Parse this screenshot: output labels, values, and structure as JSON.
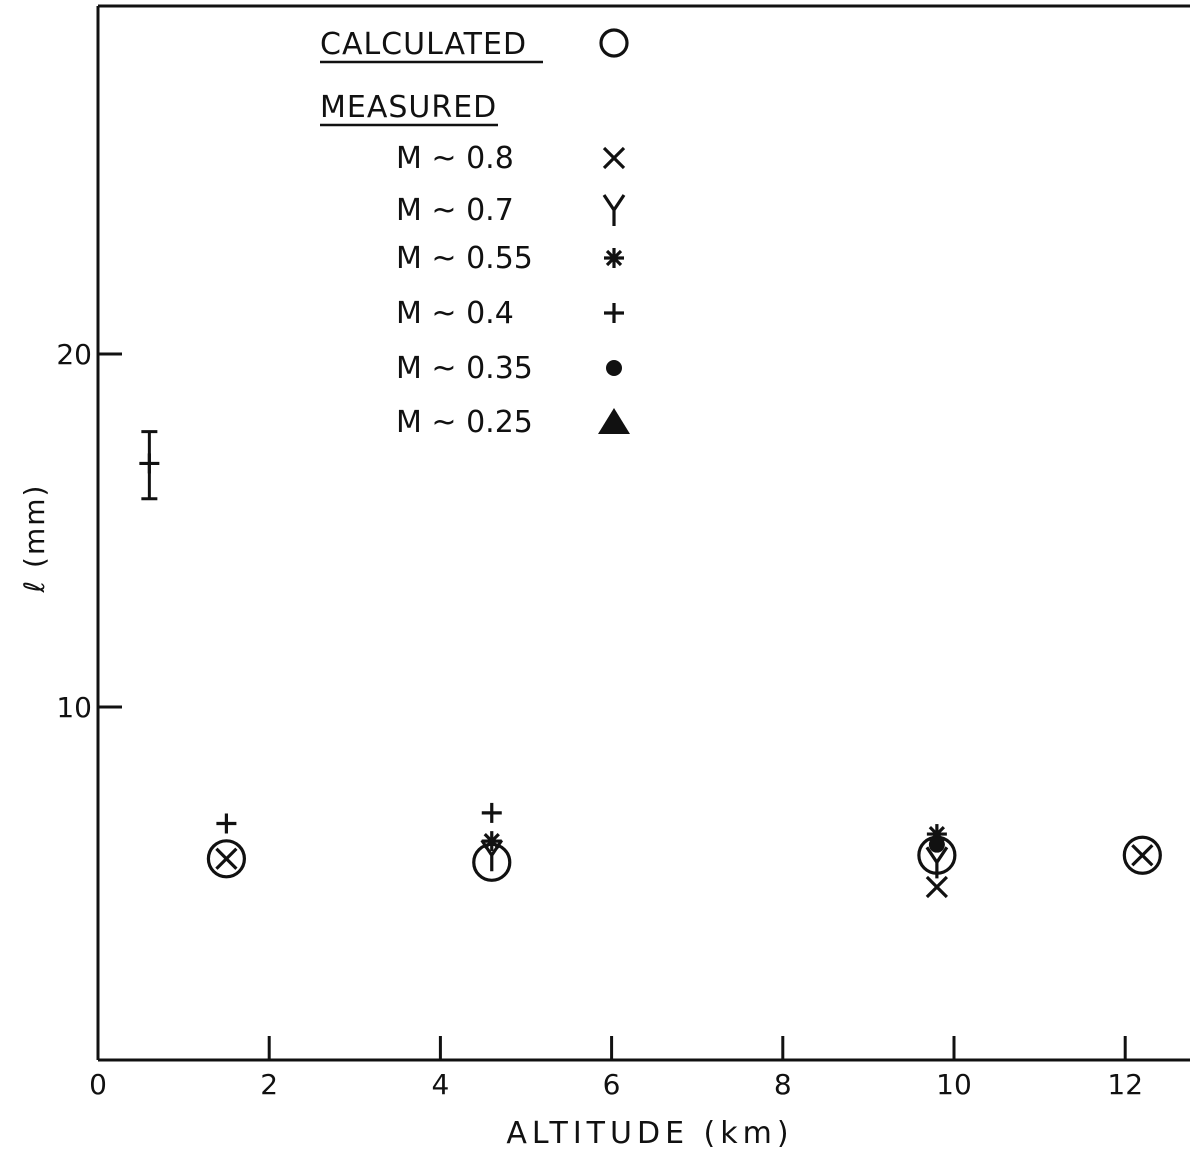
{
  "chart_data": {
    "type": "scatter",
    "title": "",
    "xlabel": "ALTITUDE (km)",
    "ylabel": "ℓ (mm)",
    "xlim": [
      0,
      13
    ],
    "ylim": [
      0,
      30
    ],
    "x_ticks": [
      0,
      2,
      4,
      6,
      8,
      10,
      12
    ],
    "x_tick_labels": [
      "0",
      "2",
      "4",
      "6",
      "8",
      "10",
      "12"
    ],
    "y_ticks": [
      10,
      20
    ],
    "y_tick_labels": [
      "10",
      "20"
    ],
    "grid": false,
    "legend_position": "top-center",
    "legend": {
      "calculated_heading": "CALCULATED",
      "measured_heading": "MEASURED",
      "entries": [
        {
          "label": "M ~ 0.8",
          "marker": "x"
        },
        {
          "label": "M ~ 0.7",
          "marker": "y"
        },
        {
          "label": "M ~ 0.55",
          "marker": "asterisk"
        },
        {
          "label": "M ~ 0.4",
          "marker": "plus"
        },
        {
          "label": "M ~ 0.35",
          "marker": "dot"
        },
        {
          "label": "M ~ 0.25",
          "marker": "triangle"
        }
      ]
    },
    "series": [
      {
        "name": "CALCULATED",
        "marker": "circle",
        "points": [
          [
            1.5,
            5.7
          ],
          [
            4.6,
            5.6
          ],
          [
            9.8,
            5.8
          ],
          [
            12.2,
            5.8
          ]
        ]
      },
      {
        "name": "M ~ 0.8",
        "marker": "x",
        "points": [
          [
            1.5,
            5.7
          ],
          [
            9.8,
            4.9
          ],
          [
            12.2,
            5.8
          ]
        ]
      },
      {
        "name": "M ~ 0.7",
        "marker": "y",
        "points": [
          [
            4.6,
            5.8
          ],
          [
            9.8,
            5.6
          ]
        ]
      },
      {
        "name": "M ~ 0.55",
        "marker": "asterisk",
        "points": [
          [
            4.6,
            6.2
          ],
          [
            9.8,
            6.4
          ]
        ]
      },
      {
        "name": "M ~ 0.4",
        "marker": "plus",
        "points": [
          [
            0.6,
            16.9
          ],
          [
            1.5,
            6.7
          ],
          [
            4.6,
            7.0
          ]
        ]
      },
      {
        "name": "M ~ 0.35",
        "marker": "dot",
        "points": [
          [
            9.8,
            6.1
          ]
        ]
      }
    ],
    "error_bars": [
      {
        "x": 0.6,
        "y": 16.9,
        "low": 15.9,
        "high": 17.8
      }
    ]
  }
}
